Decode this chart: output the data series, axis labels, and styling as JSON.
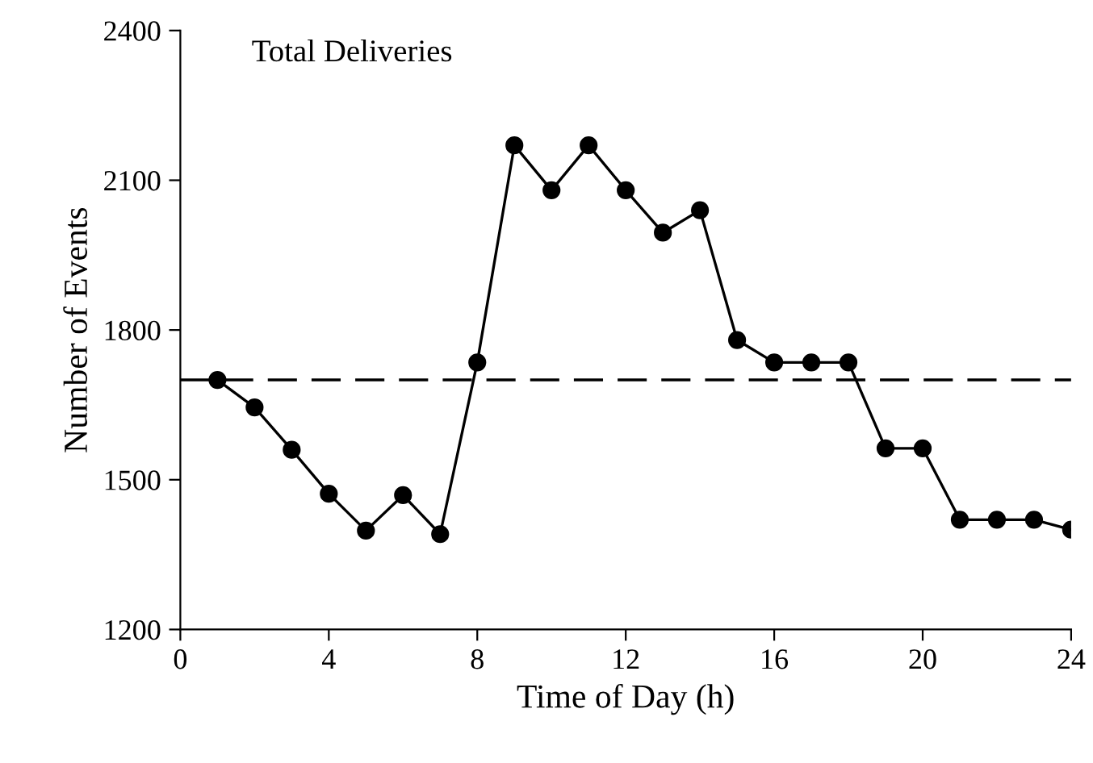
{
  "chart_data": {
    "type": "line",
    "title": "Total Deliveries",
    "xlabel": "Time of Day (h)",
    "ylabel": "Number of Events",
    "x": [
      1,
      2,
      3,
      4,
      5,
      6,
      7,
      8,
      9,
      10,
      11,
      12,
      13,
      14,
      15,
      16,
      17,
      18,
      19,
      20,
      21,
      22,
      23,
      24
    ],
    "series": [
      {
        "color": "#000000",
        "values": [
          1700,
          1645,
          1560,
          1472,
          1398,
          1469,
          1391,
          1735,
          2170,
          2080,
          2170,
          2080,
          1995,
          2040,
          1780,
          1735,
          1735,
          1735,
          1563,
          1563,
          1420,
          1420,
          1420,
          1400
        ]
      }
    ],
    "xlim": [
      0,
      24
    ],
    "xticks": [
      0,
      4,
      8,
      12,
      16,
      20,
      24
    ],
    "ylim": [
      1200,
      2400
    ],
    "yticks": [
      1200,
      1500,
      1800,
      2100,
      2400
    ],
    "ref_lines": [
      {
        "axis": "y",
        "value": 1700,
        "color": "#000000",
        "line_style": "dashed"
      }
    ],
    "marker": "circle",
    "line_style": "solid",
    "grid": false,
    "legend": false
  }
}
